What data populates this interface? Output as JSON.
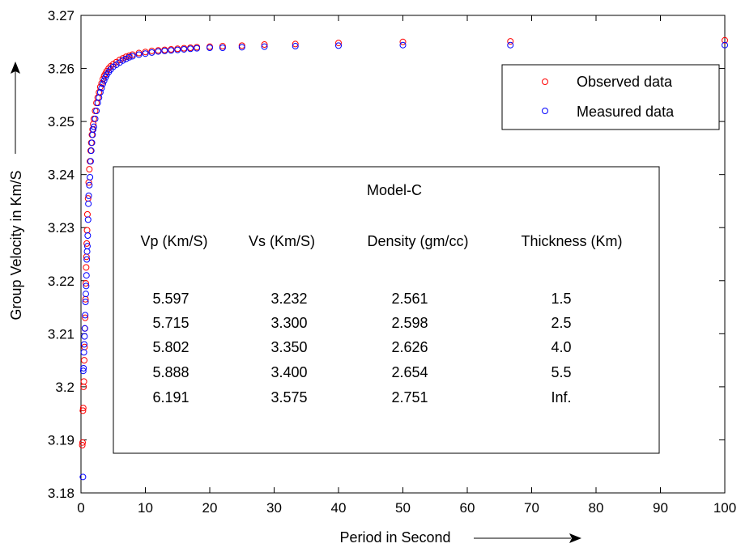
{
  "chart_data": {
    "type": "scatter",
    "xlabel": "Period in Second",
    "ylabel": "Group Velocity in Km/S",
    "xlim": [
      0,
      100
    ],
    "ylim": [
      3.18,
      3.27
    ],
    "xticks": [
      "0",
      "10",
      "20",
      "30",
      "40",
      "50",
      "60",
      "70",
      "80",
      "90",
      "100"
    ],
    "yticks": [
      "3.18",
      "3.19",
      "3.2",
      "3.21",
      "3.22",
      "3.23",
      "3.24",
      "3.25",
      "3.26",
      "3.27"
    ],
    "legend_position": "top-right",
    "series": [
      {
        "name": "Observed data",
        "color": "#ff0000",
        "marker": "open-circle",
        "x": [
          0.2,
          0.25,
          0.3,
          0.35,
          0.4,
          0.45,
          0.5,
          0.55,
          0.6,
          0.65,
          0.7,
          0.75,
          0.8,
          0.85,
          0.9,
          0.95,
          1.0,
          1.1,
          1.2,
          1.3,
          1.4,
          1.5,
          1.6,
          1.7,
          1.8,
          1.9,
          2.0,
          2.2,
          2.4,
          2.6,
          2.8,
          3.0,
          3.2,
          3.4,
          3.6,
          3.8,
          4.0,
          4.3,
          4.6,
          5.0,
          5.5,
          6.0,
          6.5,
          7.0,
          7.5,
          8.0,
          9.0,
          10.0,
          11.0,
          12.0,
          13.0,
          14.0,
          15.0,
          16.0,
          17.0,
          18.0,
          20.0,
          22.0,
          25.0,
          28.5,
          33.3,
          40.0,
          50.0,
          66.7,
          100.0
        ],
        "y": [
          3.189,
          3.1895,
          3.1955,
          3.196,
          3.2,
          3.201,
          3.205,
          3.2075,
          3.211,
          3.213,
          3.2165,
          3.2195,
          3.2225,
          3.2245,
          3.227,
          3.2295,
          3.2325,
          3.2355,
          3.2385,
          3.241,
          3.2425,
          3.2445,
          3.246,
          3.2475,
          3.2485,
          3.2495,
          3.2505,
          3.252,
          3.2535,
          3.2545,
          3.2555,
          3.2565,
          3.2572,
          3.258,
          3.2586,
          3.259,
          3.2595,
          3.26,
          3.2604,
          3.2608,
          3.2612,
          3.2616,
          3.2619,
          3.2622,
          3.2624,
          3.2626,
          3.2629,
          3.2631,
          3.2633,
          3.2634,
          3.2635,
          3.2636,
          3.2637,
          3.2638,
          3.2639,
          3.264,
          3.2641,
          3.2642,
          3.2643,
          3.2645,
          3.2646,
          3.2648,
          3.265,
          3.2651,
          3.2653
        ]
      },
      {
        "name": "Measured data",
        "color": "#0000ff",
        "marker": "open-circle",
        "x": [
          0.3,
          0.35,
          0.4,
          0.45,
          0.5,
          0.55,
          0.6,
          0.65,
          0.7,
          0.75,
          0.8,
          0.85,
          0.9,
          0.95,
          1.0,
          1.05,
          1.1,
          1.15,
          1.2,
          1.3,
          1.4,
          1.5,
          1.6,
          1.7,
          1.8,
          1.9,
          2.0,
          2.2,
          2.4,
          2.6,
          2.8,
          3.0,
          3.2,
          3.4,
          3.6,
          3.8,
          4.0,
          4.3,
          4.6,
          5.0,
          5.5,
          6.0,
          6.5,
          7.0,
          7.5,
          8.0,
          9.0,
          10.0,
          11.0,
          12.0,
          13.0,
          14.0,
          15.0,
          16.0,
          17.0,
          18.0,
          20.0,
          22.0,
          25.0,
          28.5,
          33.3,
          40.0,
          50.0,
          66.7,
          100.0
        ],
        "y": [
          3.183,
          3.203,
          3.2035,
          3.2065,
          3.208,
          3.2095,
          3.211,
          3.2135,
          3.216,
          3.2175,
          3.219,
          3.221,
          3.224,
          3.2255,
          3.2265,
          3.2285,
          3.2315,
          3.2345,
          3.236,
          3.238,
          3.2395,
          3.2425,
          3.2445,
          3.246,
          3.2475,
          3.2485,
          3.249,
          3.2505,
          3.252,
          3.2535,
          3.2545,
          3.2555,
          3.2563,
          3.2571,
          3.2577,
          3.2583,
          3.2588,
          3.2593,
          3.2598,
          3.2603,
          3.2607,
          3.2611,
          3.2615,
          3.2618,
          3.2621,
          3.2623,
          3.2626,
          3.2628,
          3.263,
          3.2632,
          3.2633,
          3.2634,
          3.2635,
          3.2636,
          3.2637,
          3.2638,
          3.2639,
          3.2639,
          3.264,
          3.2641,
          3.2642,
          3.2643,
          3.2644,
          3.2644,
          3.2644
        ]
      }
    ],
    "annotation_table": {
      "title": "Model-C",
      "headers": [
        "Vp (Km/S)",
        "Vs (Km/S)",
        "Density (gm/cc)",
        "Thickness (Km)"
      ],
      "rows": [
        [
          "5.597",
          "3.232",
          "2.561",
          "1.5"
        ],
        [
          "5.715",
          "3.300",
          "2.598",
          "2.5"
        ],
        [
          "5.802",
          "3.350",
          "2.626",
          "4.0"
        ],
        [
          "5.888",
          "3.400",
          "2.654",
          "5.5"
        ],
        [
          "6.191",
          "3.575",
          "2.751",
          "Inf."
        ]
      ]
    }
  }
}
